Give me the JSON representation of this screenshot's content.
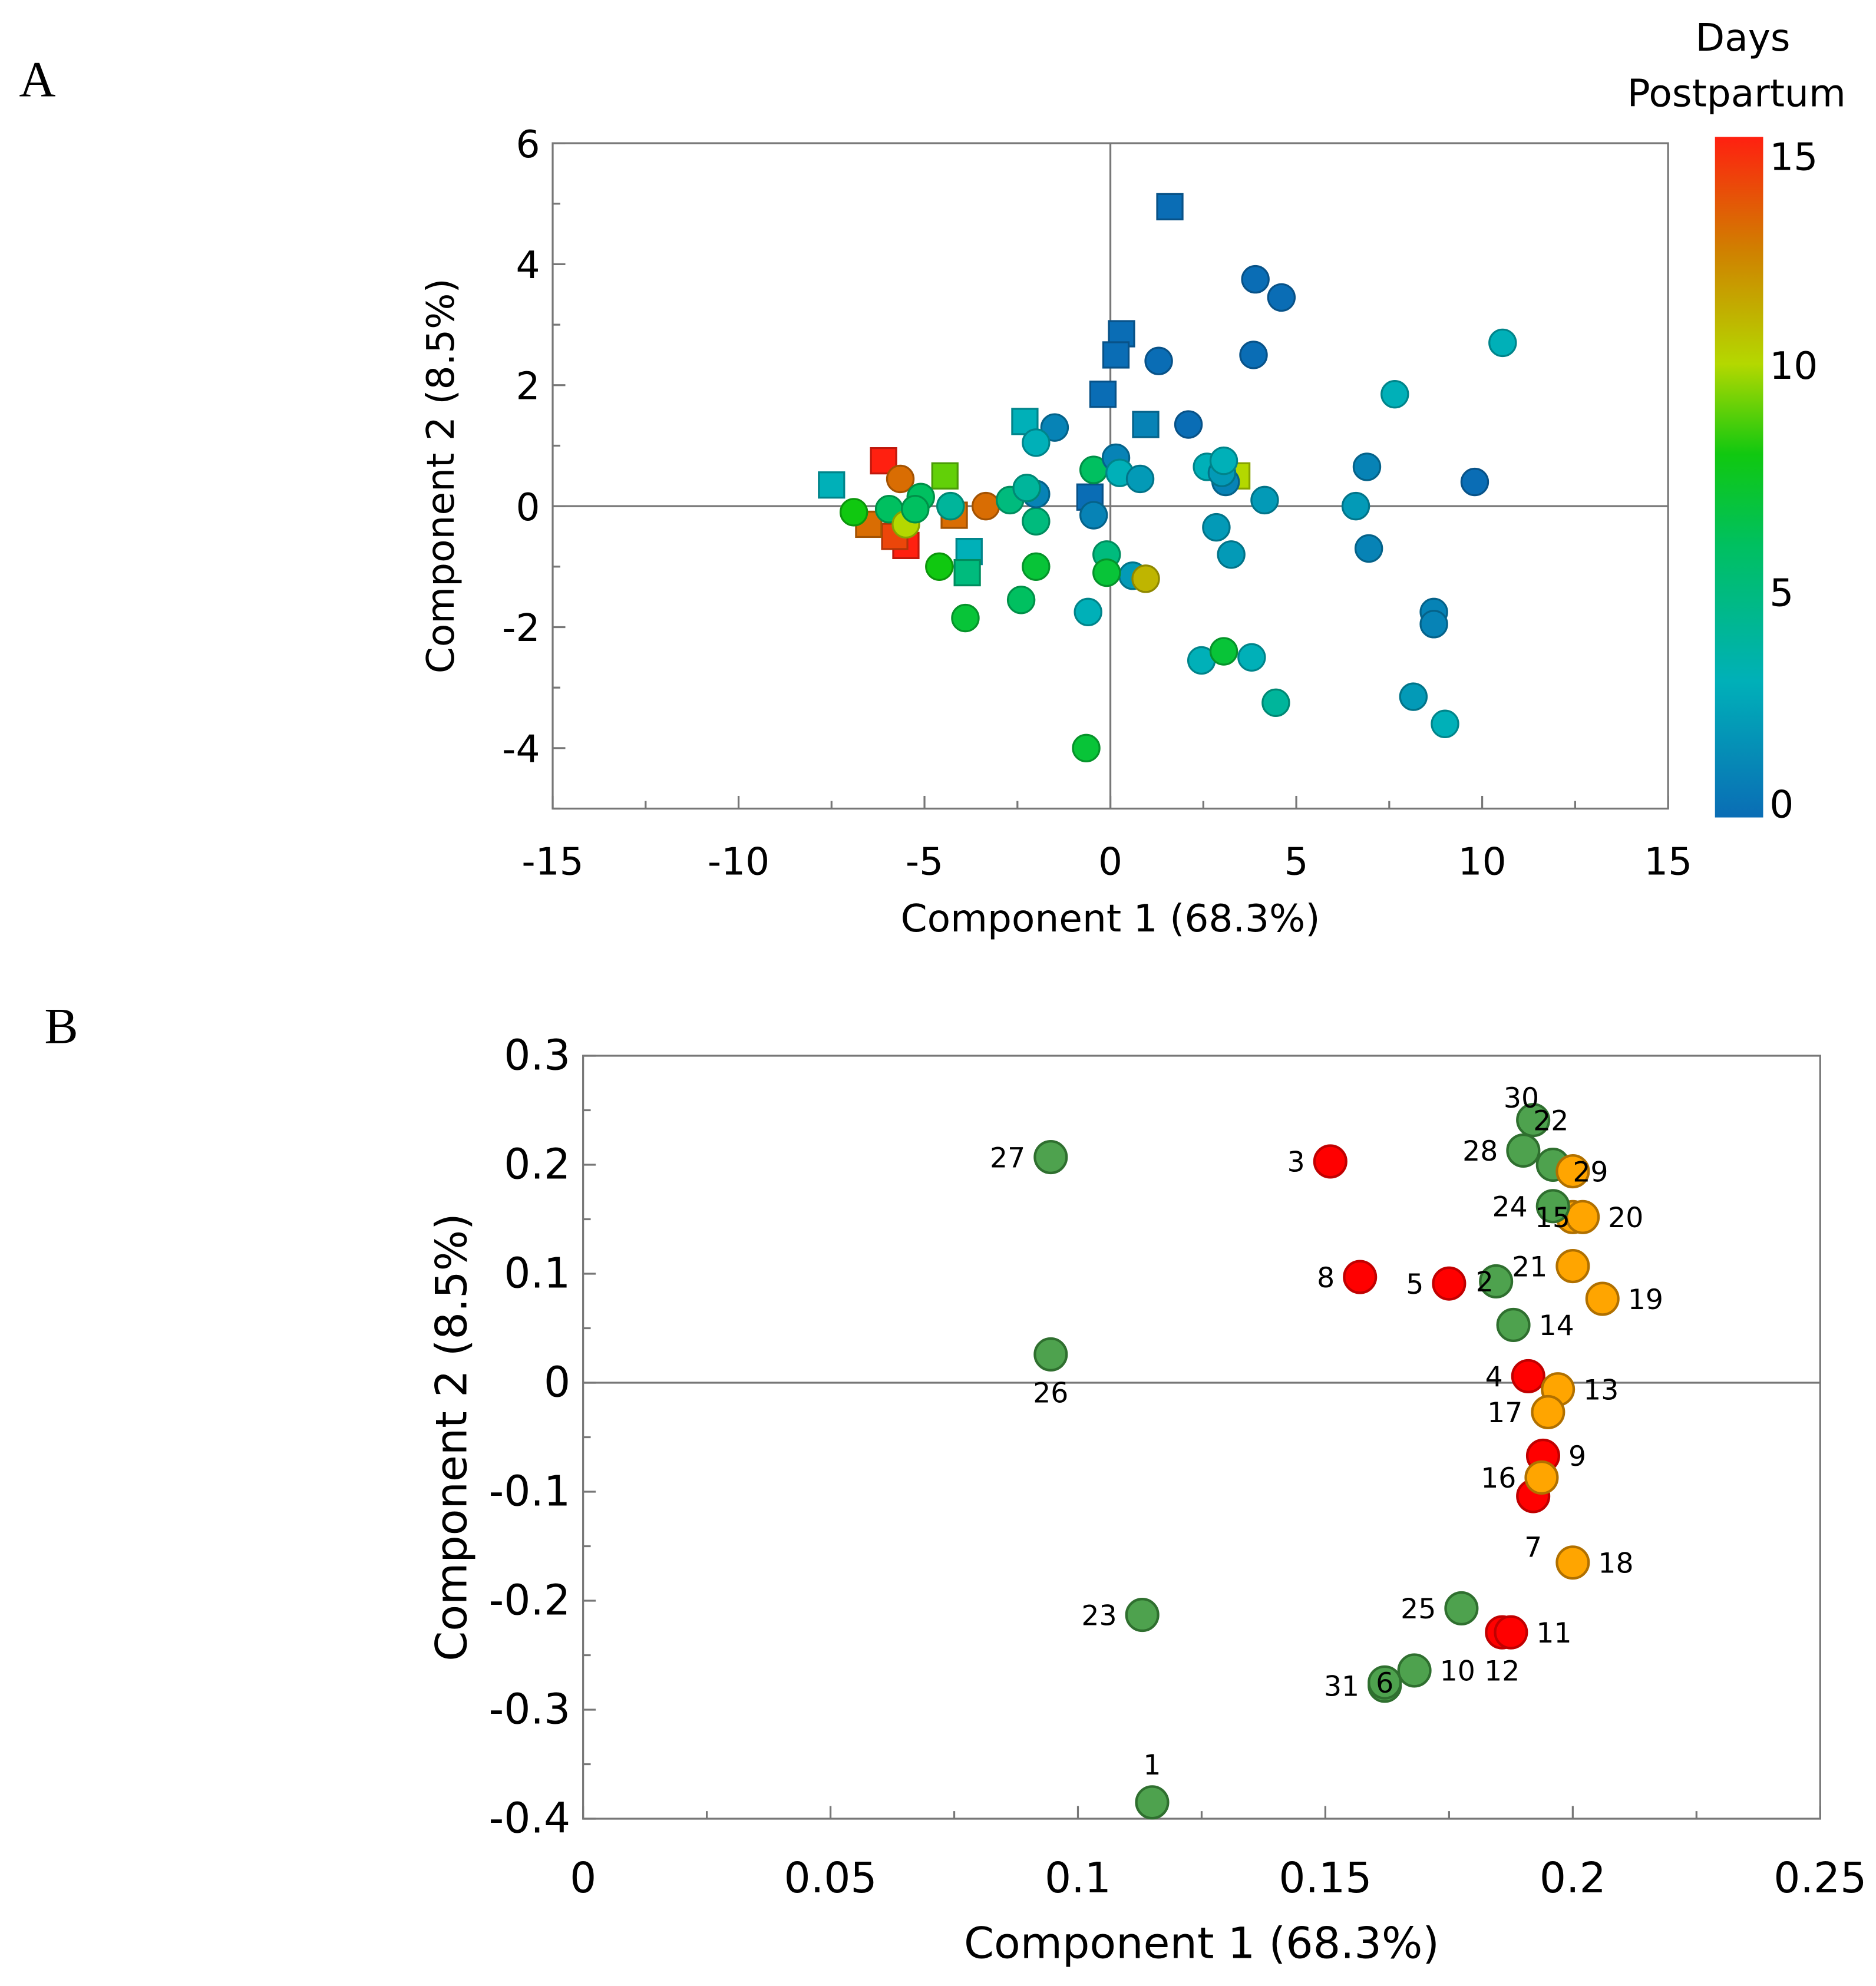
{
  "chart_data": [
    {
      "panel": "A",
      "type": "scatter",
      "xlabel": "Component 1 (68.3%)",
      "ylabel": "Component 2 (8.5%)",
      "xlim": [
        -15,
        15
      ],
      "ylim": [
        -5,
        6
      ],
      "xticks": [
        -15,
        -10,
        -5,
        0,
        5,
        10,
        15
      ],
      "yticks": [
        -4,
        -2,
        0,
        2,
        4,
        6
      ],
      "xtick_labels": [
        "-15",
        "-10",
        "-5",
        "0",
        "5",
        "10",
        "15"
      ],
      "ytick_labels": [
        "-4",
        "-2",
        "0",
        "2",
        "4",
        "6"
      ],
      "colorbar": {
        "title_line1": "Days",
        "title_line2": "Postpartum",
        "range": [
          0,
          15
        ],
        "ticks": [
          "0",
          "5",
          "10",
          "15"
        ],
        "stops": [
          {
            "v": 0,
            "c": "#0a6db5"
          },
          {
            "v": 3,
            "c": "#00b0b8"
          },
          {
            "v": 6,
            "c": "#00c060"
          },
          {
            "v": 8,
            "c": "#10c810"
          },
          {
            "v": 10,
            "c": "#b4d800"
          },
          {
            "v": 12.5,
            "c": "#d08000"
          },
          {
            "v": 15,
            "c": "#ff2010"
          }
        ]
      },
      "points": [
        {
          "x": 1.6,
          "y": 4.95,
          "days": 0,
          "shape": "square"
        },
        {
          "x": 0.3,
          "y": 2.85,
          "days": 0,
          "shape": "square"
        },
        {
          "x": 0.15,
          "y": 2.5,
          "days": 0,
          "shape": "square"
        },
        {
          "x": -0.2,
          "y": 1.85,
          "days": 0,
          "shape": "square"
        },
        {
          "x": 0.95,
          "y": 1.35,
          "days": 1,
          "shape": "square"
        },
        {
          "x": -2.3,
          "y": 1.4,
          "days": 3,
          "shape": "square"
        },
        {
          "x": -0.55,
          "y": 0.15,
          "days": 0,
          "shape": "square"
        },
        {
          "x": -7.5,
          "y": 0.35,
          "days": 3,
          "shape": "square"
        },
        {
          "x": -6.1,
          "y": 0.75,
          "days": 15,
          "shape": "square"
        },
        {
          "x": -4.45,
          "y": 0.5,
          "days": 9,
          "shape": "square"
        },
        {
          "x": -4.2,
          "y": -0.15,
          "days": 13,
          "shape": "square"
        },
        {
          "x": -3.8,
          "y": -0.75,
          "days": 3,
          "shape": "square"
        },
        {
          "x": -3.85,
          "y": -1.1,
          "days": 5,
          "shape": "square"
        },
        {
          "x": -5.5,
          "y": -0.65,
          "days": 15,
          "shape": "square"
        },
        {
          "x": -5.8,
          "y": -0.5,
          "days": 14,
          "shape": "square"
        },
        {
          "x": -6.5,
          "y": -0.3,
          "days": 13,
          "shape": "square"
        },
        {
          "x": 3.4,
          "y": 0.5,
          "days": 10,
          "shape": "square"
        },
        {
          "x": -5.65,
          "y": 0.45,
          "days": 13,
          "shape": "circle"
        },
        {
          "x": -3.35,
          "y": 0.0,
          "days": 13,
          "shape": "circle"
        },
        {
          "x": -6.9,
          "y": -0.1,
          "days": 8,
          "shape": "circle"
        },
        {
          "x": -5.95,
          "y": -0.05,
          "days": 6,
          "shape": "circle"
        },
        {
          "x": -5.5,
          "y": -0.3,
          "days": 10,
          "shape": "circle"
        },
        {
          "x": -5.1,
          "y": 0.15,
          "days": 6,
          "shape": "circle"
        },
        {
          "x": -5.25,
          "y": -0.05,
          "days": 6,
          "shape": "circle"
        },
        {
          "x": -4.3,
          "y": 0.0,
          "days": 4,
          "shape": "circle"
        },
        {
          "x": -4.6,
          "y": -1.0,
          "days": 8,
          "shape": "circle"
        },
        {
          "x": -3.9,
          "y": -1.85,
          "days": 7,
          "shape": "circle"
        },
        {
          "x": -2.4,
          "y": -1.55,
          "days": 6,
          "shape": "circle"
        },
        {
          "x": -2.0,
          "y": -1.0,
          "days": 7,
          "shape": "circle"
        },
        {
          "x": -2.0,
          "y": -0.25,
          "days": 5,
          "shape": "circle"
        },
        {
          "x": -2.7,
          "y": 0.1,
          "days": 5,
          "shape": "circle"
        },
        {
          "x": -2.0,
          "y": 0.2,
          "days": 1,
          "shape": "circle"
        },
        {
          "x": -2.25,
          "y": 0.3,
          "days": 4,
          "shape": "circle"
        },
        {
          "x": -1.5,
          "y": 1.3,
          "days": 1,
          "shape": "circle"
        },
        {
          "x": -2.0,
          "y": 1.05,
          "days": 3,
          "shape": "circle"
        },
        {
          "x": -0.45,
          "y": 0.6,
          "days": 6,
          "shape": "circle"
        },
        {
          "x": -0.45,
          "y": -0.15,
          "days": 1,
          "shape": "circle"
        },
        {
          "x": -0.6,
          "y": -1.75,
          "days": 3,
          "shape": "circle"
        },
        {
          "x": -0.65,
          "y": -4.0,
          "days": 7,
          "shape": "circle"
        },
        {
          "x": 0.6,
          "y": -1.15,
          "days": 2,
          "shape": "circle"
        },
        {
          "x": -0.1,
          "y": -0.8,
          "days": 5,
          "shape": "circle"
        },
        {
          "x": -0.1,
          "y": -1.1,
          "days": 7,
          "shape": "circle"
        },
        {
          "x": 0.95,
          "y": -1.2,
          "days": 11,
          "shape": "circle"
        },
        {
          "x": 0.15,
          "y": 0.8,
          "days": 1,
          "shape": "circle"
        },
        {
          "x": 0.25,
          "y": 0.55,
          "days": 3,
          "shape": "circle"
        },
        {
          "x": 0.8,
          "y": 0.45,
          "days": 2,
          "shape": "circle"
        },
        {
          "x": 1.3,
          "y": 2.4,
          "days": 0,
          "shape": "circle"
        },
        {
          "x": 2.1,
          "y": 1.35,
          "days": 0,
          "shape": "circle"
        },
        {
          "x": 3.9,
          "y": 3.75,
          "days": 0,
          "shape": "circle"
        },
        {
          "x": 4.6,
          "y": 3.45,
          "days": 0,
          "shape": "circle"
        },
        {
          "x": 3.85,
          "y": 2.5,
          "days": 0,
          "shape": "circle"
        },
        {
          "x": 2.6,
          "y": 0.65,
          "days": 3,
          "shape": "circle"
        },
        {
          "x": 3.1,
          "y": 0.4,
          "days": 1,
          "shape": "circle"
        },
        {
          "x": 3.0,
          "y": 0.55,
          "days": 2,
          "shape": "circle"
        },
        {
          "x": 3.05,
          "y": 0.75,
          "days": 3,
          "shape": "circle"
        },
        {
          "x": 4.15,
          "y": 0.1,
          "days": 2,
          "shape": "circle"
        },
        {
          "x": 2.85,
          "y": -0.35,
          "days": 2,
          "shape": "circle"
        },
        {
          "x": 3.25,
          "y": -0.8,
          "days": 2,
          "shape": "circle"
        },
        {
          "x": 2.45,
          "y": -2.55,
          "days": 3,
          "shape": "circle"
        },
        {
          "x": 3.8,
          "y": -2.5,
          "days": 3,
          "shape": "circle"
        },
        {
          "x": 3.05,
          "y": -2.4,
          "days": 7,
          "shape": "circle"
        },
        {
          "x": 4.45,
          "y": -3.25,
          "days": 4,
          "shape": "circle"
        },
        {
          "x": 7.65,
          "y": 1.85,
          "days": 3,
          "shape": "circle"
        },
        {
          "x": 10.55,
          "y": 2.7,
          "days": 3,
          "shape": "circle"
        },
        {
          "x": 6.9,
          "y": 0.65,
          "days": 1,
          "shape": "circle"
        },
        {
          "x": 6.6,
          "y": 0.0,
          "days": 2,
          "shape": "circle"
        },
        {
          "x": 6.95,
          "y": -0.7,
          "days": 1,
          "shape": "circle"
        },
        {
          "x": 9.8,
          "y": 0.4,
          "days": 0,
          "shape": "circle"
        },
        {
          "x": 8.7,
          "y": -1.75,
          "days": 1,
          "shape": "circle"
        },
        {
          "x": 8.7,
          "y": -1.95,
          "days": 1,
          "shape": "circle"
        },
        {
          "x": 8.15,
          "y": -3.15,
          "days": 2,
          "shape": "circle"
        },
        {
          "x": 9.0,
          "y": -3.6,
          "days": 3,
          "shape": "circle"
        }
      ]
    },
    {
      "panel": "B",
      "type": "scatter",
      "xlabel": "Component 1 (68.3%)",
      "ylabel": "Component 2 (8.5%)",
      "xlim": [
        0,
        0.25
      ],
      "ylim": [
        -0.4,
        0.3
      ],
      "xticks": [
        0,
        0.05,
        0.1,
        0.15,
        0.2,
        0.25
      ],
      "yticks": [
        -0.4,
        -0.3,
        -0.2,
        -0.1,
        0,
        0.1,
        0.2,
        0.3
      ],
      "xtick_labels": [
        "0",
        "0.05",
        "0.1",
        "0.15",
        "0.2",
        "0.25"
      ],
      "ytick_labels": [
        "-0.4",
        "-0.3",
        "-0.2",
        "-0.1",
        "0",
        "0.1",
        "0.2",
        "0.3"
      ],
      "group_colors": {
        "red": {
          "fill": "#ff0000",
          "stroke": "#c00000"
        },
        "orange": {
          "fill": "#ffa500",
          "stroke": "#b07000"
        },
        "green": {
          "fill": "#4ea24e",
          "stroke": "#2f6f2f"
        }
      },
      "points": [
        {
          "label": "27",
          "x": 0.0945,
          "y": 0.207,
          "group": "green",
          "label_side": "left"
        },
        {
          "label": "26",
          "x": 0.0945,
          "y": 0.026,
          "group": "green",
          "label_side": "below"
        },
        {
          "label": "23",
          "x": 0.113,
          "y": -0.213,
          "group": "green",
          "label_side": "left"
        },
        {
          "label": "1",
          "x": 0.115,
          "y": -0.385,
          "group": "green",
          "label_side": "above"
        },
        {
          "label": "3",
          "x": 0.151,
          "y": 0.203,
          "group": "red",
          "label_side": "left"
        },
        {
          "label": "8",
          "x": 0.157,
          "y": 0.097,
          "group": "red",
          "label_side": "left"
        },
        {
          "label": "5",
          "x": 0.175,
          "y": 0.091,
          "group": "red",
          "label_side": "left"
        },
        {
          "label": "2",
          "x": 0.1845,
          "y": 0.093,
          "group": "green",
          "label_side": "left-near"
        },
        {
          "label": "30",
          "x": 0.196,
          "y": 0.2,
          "group": "green",
          "label_side": "above-far"
        },
        {
          "label": "22",
          "x": 0.192,
          "y": 0.241,
          "group": "green",
          "label_side": "right-near"
        },
        {
          "label": "28",
          "x": 0.19,
          "y": 0.213,
          "group": "green",
          "label_side": "left"
        },
        {
          "label": "29",
          "x": 0.2,
          "y": 0.194,
          "group": "orange",
          "label_side": "right-near"
        },
        {
          "label": "15",
          "x": 0.2,
          "y": 0.152,
          "group": "orange",
          "label_side": "left-near"
        },
        {
          "label": "20",
          "x": 0.202,
          "y": 0.152,
          "group": "orange",
          "label_side": "right"
        },
        {
          "label": "24",
          "x": 0.196,
          "y": 0.162,
          "group": "green",
          "label_side": "left"
        },
        {
          "label": "21",
          "x": 0.2,
          "y": 0.107,
          "group": "orange",
          "label_side": "left"
        },
        {
          "label": "19",
          "x": 0.206,
          "y": 0.077,
          "group": "orange",
          "label_side": "right"
        },
        {
          "label": "14",
          "x": 0.188,
          "y": 0.053,
          "group": "green",
          "label_side": "right"
        },
        {
          "label": "4",
          "x": 0.191,
          "y": 0.006,
          "group": "red",
          "label_side": "left"
        },
        {
          "label": "13",
          "x": 0.197,
          "y": -0.006,
          "group": "orange",
          "label_side": "right"
        },
        {
          "label": "17",
          "x": 0.195,
          "y": -0.027,
          "group": "orange",
          "label_side": "left"
        },
        {
          "label": "9",
          "x": 0.194,
          "y": -0.067,
          "group": "red",
          "label_side": "right"
        },
        {
          "label": "7",
          "x": 0.192,
          "y": -0.104,
          "group": "red",
          "label_side": "below-far"
        },
        {
          "label": "16",
          "x": 0.1937,
          "y": -0.087,
          "group": "orange",
          "label_side": "left"
        },
        {
          "label": "18",
          "x": 0.2,
          "y": -0.165,
          "group": "orange",
          "label_side": "right"
        },
        {
          "label": "25",
          "x": 0.1775,
          "y": -0.207,
          "group": "green",
          "label_side": "left"
        },
        {
          "label": "12",
          "x": 0.1857,
          "y": -0.229,
          "group": "red",
          "label_side": "below"
        },
        {
          "label": "11",
          "x": 0.1875,
          "y": -0.229,
          "group": "red",
          "label_side": "right"
        },
        {
          "label": "10",
          "x": 0.168,
          "y": -0.264,
          "group": "green",
          "label_side": "right"
        },
        {
          "label": "31",
          "x": 0.162,
          "y": -0.278,
          "group": "green",
          "label_side": "left"
        },
        {
          "label": "6",
          "x": 0.162,
          "y": -0.275,
          "group": "green",
          "label_side": "on"
        }
      ]
    }
  ],
  "panels": {
    "a_letter": "A",
    "b_letter": "B"
  }
}
